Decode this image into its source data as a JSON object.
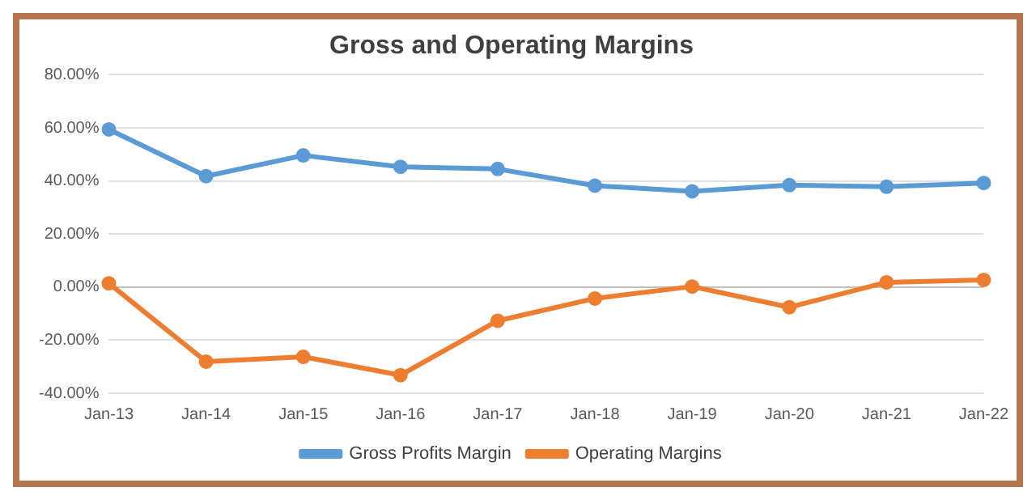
{
  "chart_data": {
    "type": "line",
    "title": "Gross and Operating Margins",
    "categories": [
      "Jan-13",
      "Jan-14",
      "Jan-15",
      "Jan-16",
      "Jan-17",
      "Jan-18",
      "Jan-19",
      "Jan-20",
      "Jan-21",
      "Jan-22"
    ],
    "series": [
      {
        "name": "Gross Profits Margin",
        "color": "#5b9bd5",
        "values": [
          59.4,
          41.8,
          49.6,
          45.3,
          44.5,
          38.2,
          36.1,
          38.4,
          37.8,
          39.2
        ]
      },
      {
        "name": "Operating Margins",
        "color": "#ed7d31",
        "values": [
          1.4,
          -28.1,
          -26.3,
          -33.2,
          -12.7,
          -4.3,
          0.2,
          -7.6,
          1.8,
          2.7
        ]
      }
    ],
    "ylim": [
      -40,
      80
    ],
    "yticks": [
      {
        "value": -40,
        "label": "-40.00%"
      },
      {
        "value": -20,
        "label": "-20.00%"
      },
      {
        "value": 0,
        "label": "0.00%"
      },
      {
        "value": 20,
        "label": "20.00%"
      },
      {
        "value": 40,
        "label": "40.00%"
      },
      {
        "value": 60,
        "label": "60.00%"
      },
      {
        "value": 80,
        "label": "80.00%"
      }
    ],
    "grid": "y",
    "legend": "bottom",
    "marker": "circle",
    "line_style": "solid"
  }
}
